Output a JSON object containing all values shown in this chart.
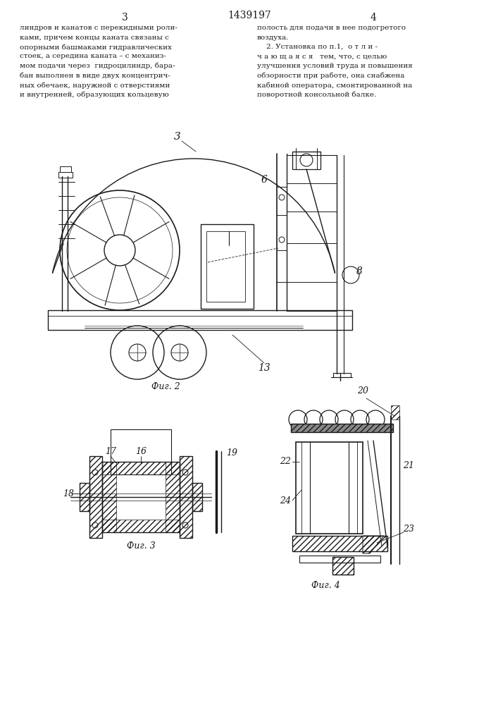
{
  "background_color": "#ffffff",
  "page_width": 7.07,
  "page_height": 10.0,
  "page_num_left": "3",
  "page_num_right": "4",
  "patent_number": "1439197",
  "text_left": [
    "линдров и канатов с перекидными роли-",
    "ками, причем концы каната связаны с",
    "опорными башмаками гидравлических",
    "стоек, а середина каната – с механиз-",
    "мом подачи через  гидроцилиндр, бара-",
    "бан выполнен в виде двух концентрич-",
    "ных обечаек, наружной с отверстиями",
    "и внутренней, образующих кольцевую"
  ],
  "text_right": [
    "полость для подачи в нее подогретого",
    "воздуха.",
    "    2. Установка по п.1,  о т л и -",
    "ч а ю щ а я с я   тем, что, с целью",
    "улучшения условий труда и повышения",
    "обзорности при работе, она снабжена",
    "кабиной оператора, смонтированной на",
    "поворотной консольной балке."
  ],
  "fig2_label": "Фиг. 2",
  "fig3_label": "Фиг. 3",
  "fig4_label": "Фиг. 4",
  "line_color": "#1a1a1a",
  "text_color": "#1a1a1a",
  "font_size_body": 7.5,
  "font_size_label": 9,
  "font_size_pagenum": 10
}
